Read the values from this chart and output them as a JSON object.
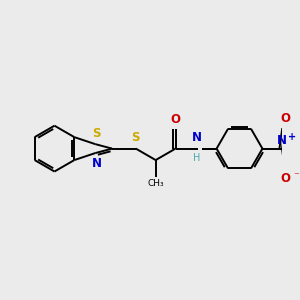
{
  "background_color": "#ebebeb",
  "bond_color": "#000000",
  "S_color": "#ccaa00",
  "N_color": "#0000cc",
  "O_color": "#cc0000",
  "H_color": "#4aacac",
  "figsize": [
    3.0,
    3.0
  ],
  "dpi": 100,
  "xlim": [
    0,
    10
  ],
  "ylim": [
    1,
    9
  ],
  "lw": 1.4,
  "fs": 8.5,
  "fs_small": 7.0
}
